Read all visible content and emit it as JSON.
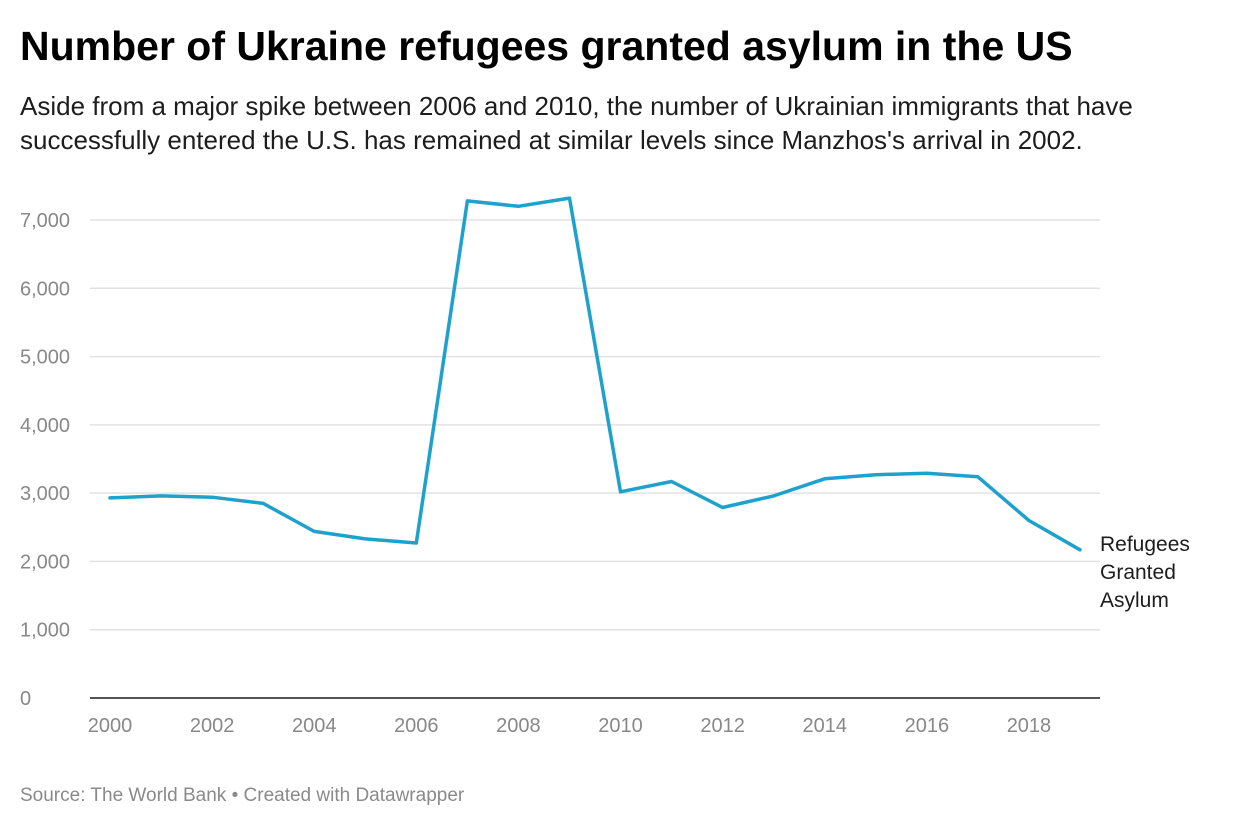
{
  "title": "Number of Ukraine refugees granted asylum in the US",
  "subtitle": "Aside from a major spike between 2006 and 2010, the number of Ukrainian immigrants that have successfully entered the U.S. has remained at similar levels since Manzhos's arrival in 2002.",
  "footer": {
    "source": "Source: The World Bank",
    "separator": " • ",
    "credit": "Created with Datawrapper"
  },
  "colors": {
    "line": "#1ea1cc",
    "grid": "#e2e2e2",
    "axis": "#1d1d1d",
    "tick_text": "#888888"
  },
  "chart_data": {
    "type": "line",
    "title": "Number of Ukraine refugees granted asylum in the US",
    "xlabel": "",
    "ylabel": "",
    "x": [
      2000,
      2001,
      2002,
      2003,
      2004,
      2005,
      2006,
      2007,
      2008,
      2009,
      2010,
      2011,
      2012,
      2013,
      2014,
      2015,
      2016,
      2017,
      2018,
      2019
    ],
    "series": [
      {
        "name": "Refugees Granted Asylum",
        "label_lines": [
          "Refugees",
          "Granted",
          "Asylum"
        ],
        "values": [
          2930,
          2960,
          2940,
          2850,
          2440,
          2330,
          2270,
          7280,
          7200,
          7320,
          3020,
          3170,
          2790,
          2960,
          3210,
          3270,
          3290,
          3240,
          2600,
          2170
        ]
      }
    ],
    "xlim": [
      2000,
      2019
    ],
    "ylim": [
      0,
      7000
    ],
    "x_ticks": [
      2000,
      2002,
      2004,
      2006,
      2008,
      2010,
      2012,
      2014,
      2016,
      2018
    ],
    "y_ticks": [
      0,
      1000,
      2000,
      3000,
      4000,
      5000,
      6000,
      7000
    ],
    "y_tick_labels": [
      "0",
      "1,000",
      "2,000",
      "3,000",
      "4,000",
      "5,000",
      "6,000",
      "7,000"
    ],
    "grid": "horizontal",
    "legend": "inline label at line end"
  }
}
